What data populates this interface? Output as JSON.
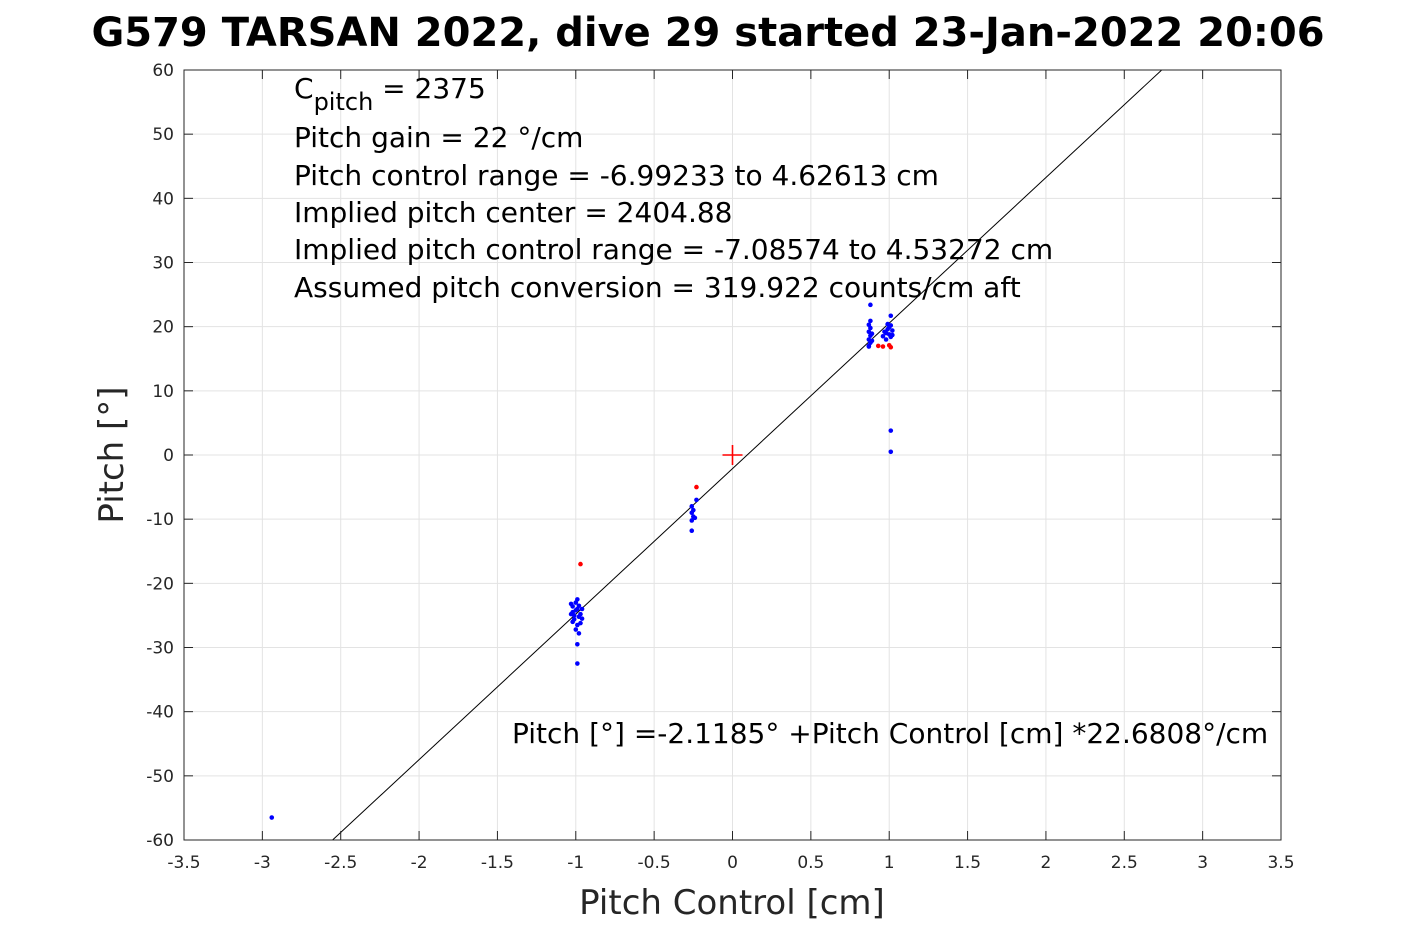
{
  "chart_data": {
    "type": "scatter",
    "title": "G579 TARSAN 2022, dive 29 started 23-Jan-2022 20:06",
    "xlabel": "Pitch Control [cm]",
    "ylabel": "Pitch [°]",
    "xlim": [
      -3.5,
      3.5
    ],
    "ylim": [
      -60,
      60
    ],
    "xticks": [
      -3.5,
      -3,
      -2.5,
      -2,
      -1.5,
      -1,
      -0.5,
      0,
      0.5,
      1,
      1.5,
      2,
      2.5,
      3,
      3.5
    ],
    "xtick_labels": [
      "-3.5",
      "-3",
      "-2.5",
      "-2",
      "-1.5",
      "-1",
      "-0.5",
      "0",
      "0.5",
      "1",
      "1.5",
      "2",
      "2.5",
      "3",
      "3.5"
    ],
    "yticks": [
      -60,
      -50,
      -40,
      -30,
      -20,
      -10,
      0,
      10,
      20,
      30,
      40,
      50,
      60
    ],
    "ytick_labels": [
      "-60",
      "-50",
      "-40",
      "-30",
      "-20",
      "-10",
      "0",
      "10",
      "20",
      "30",
      "40",
      "50",
      "60"
    ],
    "grid": true,
    "annotations": {
      "c_pitch_label": "C",
      "c_pitch_subscript": "pitch",
      "c_pitch_value": " = 2375",
      "lines": [
        "Pitch gain = 22 °/cm",
        "Pitch control range = -6.99233 to 4.62613 cm",
        "Implied pitch center = 2404.88",
        "Implied pitch control range = -7.08574 to 4.53272 cm",
        "Assumed pitch conversion = 319.922 counts/cm aft"
      ],
      "fit_equation": "Pitch [°] =-2.1185° +Pitch Control [cm] *22.6808°/cm"
    },
    "fit_line": {
      "intercept": -2.1185,
      "slope": 22.6808,
      "color": "#000000"
    },
    "center_marker": {
      "x": 0,
      "y": 0,
      "color": "#ff0000",
      "symbol": "+"
    },
    "series": [
      {
        "color": "#0000ff",
        "points": [
          [
            -2.94,
            -56.5
          ],
          [
            -1.03,
            -23.2
          ],
          [
            -1.02,
            -24.5
          ],
          [
            -1.01,
            -25.6
          ],
          [
            -1.02,
            -26.0
          ],
          [
            -1.03,
            -24.8
          ],
          [
            -1.0,
            -23.0
          ],
          [
            -0.99,
            -24.0
          ],
          [
            -0.98,
            -25.2
          ],
          [
            -0.99,
            -26.5
          ],
          [
            -1.0,
            -27.2
          ],
          [
            -0.98,
            -23.5
          ],
          [
            -0.97,
            -24.8
          ],
          [
            -0.96,
            -25.5
          ],
          [
            -0.99,
            -22.5
          ],
          [
            -0.98,
            -27.8
          ],
          [
            -1.01,
            -25.0
          ],
          [
            -1.0,
            -24.2
          ],
          [
            -0.97,
            -26.2
          ],
          [
            -0.96,
            -24.0
          ],
          [
            -1.02,
            -23.6
          ],
          [
            -0.99,
            -29.5
          ],
          [
            -0.99,
            -32.5
          ],
          [
            -0.26,
            -8.0
          ],
          [
            -0.26,
            -9.0
          ],
          [
            -0.25,
            -9.6
          ],
          [
            -0.26,
            -10.2
          ],
          [
            -0.24,
            -9.8
          ],
          [
            -0.26,
            -11.8
          ],
          [
            -0.23,
            -7.0
          ],
          [
            -0.25,
            -8.6
          ],
          [
            0.87,
            17.0
          ],
          [
            0.88,
            17.5
          ],
          [
            0.87,
            18.0
          ],
          [
            0.88,
            18.6
          ],
          [
            0.87,
            19.2
          ],
          [
            0.88,
            19.8
          ],
          [
            0.87,
            20.3
          ],
          [
            0.88,
            20.9
          ],
          [
            0.89,
            17.8
          ],
          [
            0.89,
            18.9
          ],
          [
            0.87,
            16.9
          ],
          [
            0.88,
            23.4
          ],
          [
            0.96,
            18.5
          ],
          [
            0.97,
            19.2
          ],
          [
            0.98,
            18.0
          ],
          [
            0.99,
            19.6
          ],
          [
            0.99,
            20.4
          ],
          [
            1.0,
            18.8
          ],
          [
            1.0,
            19.9
          ],
          [
            1.01,
            18.4
          ],
          [
            1.01,
            20.2
          ],
          [
            1.02,
            19.4
          ],
          [
            1.02,
            18.7
          ],
          [
            0.98,
            19.0
          ],
          [
            1.01,
            21.7
          ],
          [
            1.01,
            3.8
          ],
          [
            1.01,
            0.5
          ]
        ]
      },
      {
        "color": "#ff0000",
        "points": [
          [
            -0.97,
            -17.0
          ],
          [
            -0.23,
            -5.0
          ],
          [
            0.93,
            17.0
          ],
          [
            0.96,
            16.9
          ],
          [
            1.0,
            17.1
          ],
          [
            1.01,
            16.8
          ]
        ]
      }
    ]
  }
}
